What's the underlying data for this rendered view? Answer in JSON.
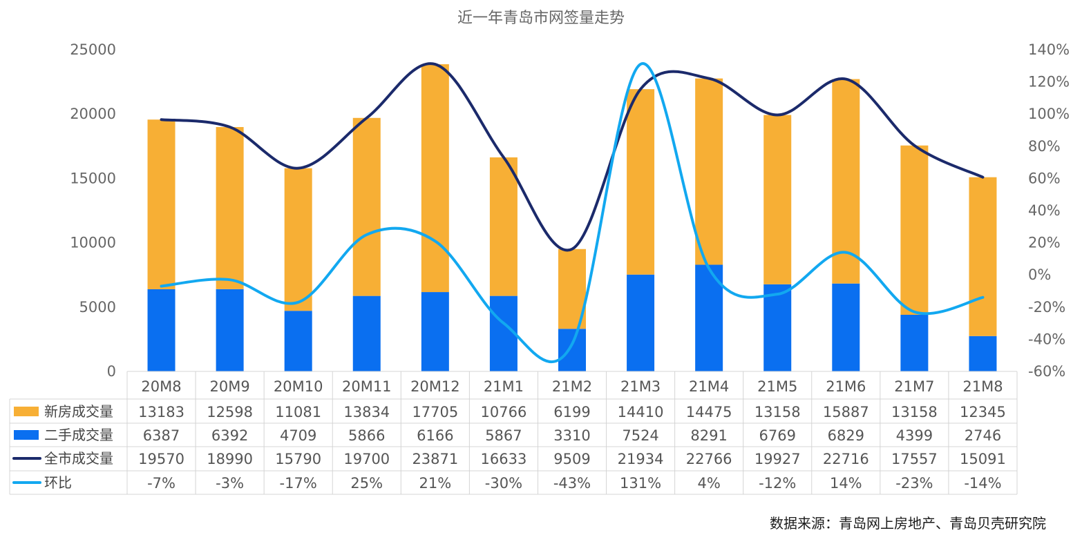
{
  "chart_data": {
    "type": "bar",
    "title": "近一年青岛市网签量走势",
    "categories": [
      "20M8",
      "20M9",
      "20M10",
      "20M11",
      "20M12",
      "21M1",
      "21M2",
      "21M3",
      "21M4",
      "21M5",
      "21M6",
      "21M7",
      "21M8"
    ],
    "series": [
      {
        "name": "新房成交量",
        "kind": "stacked-bar",
        "axis": "left",
        "color": "#F7AF35",
        "values": [
          13183,
          12598,
          11081,
          13834,
          17705,
          10766,
          6199,
          14410,
          14475,
          13158,
          15887,
          13158,
          12345
        ]
      },
      {
        "name": "二手成交量",
        "kind": "stacked-bar",
        "axis": "left",
        "color": "#0A6FF0",
        "values": [
          6387,
          6392,
          4709,
          5866,
          6166,
          5867,
          3310,
          7524,
          8291,
          6769,
          6829,
          4399,
          2746
        ]
      },
      {
        "name": "全市成交量",
        "kind": "line",
        "axis": "left",
        "color": "#1B2A6B",
        "values": [
          19570,
          18990,
          15790,
          19700,
          23871,
          16633,
          9509,
          21934,
          22766,
          19927,
          22716,
          17557,
          15091
        ]
      },
      {
        "name": "环比",
        "kind": "line",
        "axis": "right",
        "color": "#12A8F0",
        "values": [
          -7,
          -3,
          -17,
          25,
          21,
          -30,
          -43,
          131,
          4,
          -12,
          14,
          -23,
          -14
        ]
      }
    ],
    "table_labels": [
      [
        "13183",
        "12598",
        "11081",
        "13834",
        "17705",
        "10766",
        "6199",
        "14410",
        "14475",
        "13158",
        "15887",
        "13158",
        "12345"
      ],
      [
        "6387",
        "6392",
        "4709",
        "5866",
        "6166",
        "5867",
        "3310",
        "7524",
        "8291",
        "6769",
        "6829",
        "4399",
        "2746"
      ],
      [
        "19570",
        "18990",
        "15790",
        "19700",
        "23871",
        "16633",
        "9509",
        "21934",
        "22766",
        "19927",
        "22716",
        "17557",
        "15091"
      ],
      [
        "-7%",
        "-3%",
        "-17%",
        "25%",
        "21%",
        "-30%",
        "-43%",
        "131%",
        "4%",
        "-12%",
        "14%",
        "-23%",
        "-14%"
      ]
    ],
    "ylim": [
      0,
      25000
    ],
    "yticks": [
      0,
      5000,
      10000,
      15000,
      20000,
      25000
    ],
    "ytick_labels": [
      "0",
      "5000",
      "10000",
      "15000",
      "20000",
      "25000"
    ],
    "y2lim": [
      -60,
      140
    ],
    "y2ticks": [
      -60,
      -40,
      -20,
      0,
      20,
      40,
      60,
      80,
      100,
      120,
      140
    ],
    "y2tick_labels": [
      "-60%",
      "-40%",
      "-20%",
      "0%",
      "20%",
      "40%",
      "60%",
      "80%",
      "100%",
      "120%",
      "140%"
    ],
    "grid": false,
    "legend": "data-table"
  },
  "source_note": "数据来源：青岛网上房地产、青岛贝壳研究院"
}
